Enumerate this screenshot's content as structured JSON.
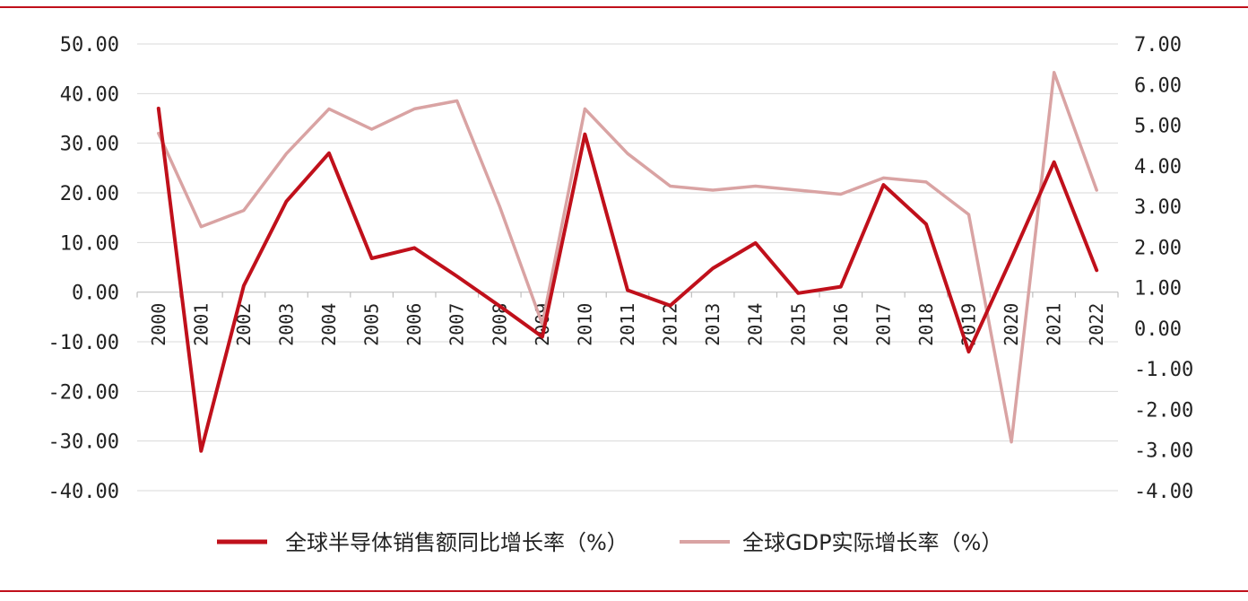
{
  "chart_data": {
    "type": "line",
    "categories": [
      "2000",
      "2001",
      "2002",
      "2003",
      "2004",
      "2005",
      "2006",
      "2007",
      "2008",
      "2009",
      "2010",
      "2011",
      "2012",
      "2013",
      "2014",
      "2015",
      "2016",
      "2017",
      "2018",
      "2019",
      "2020",
      "2021",
      "2022"
    ],
    "series": [
      {
        "name": "全球半导体销售额同比增长率（%）",
        "axis": "left",
        "color": "#c0101b",
        "values": [
          37.0,
          -32.0,
          1.3,
          18.3,
          28.0,
          6.8,
          8.9,
          3.2,
          -2.8,
          -9.0,
          31.8,
          0.4,
          -2.7,
          4.8,
          9.9,
          -0.2,
          1.1,
          21.6,
          13.7,
          -12.0,
          6.8,
          26.2,
          4.4
        ]
      },
      {
        "name": "全球GDP实际增长率（%）",
        "axis": "right",
        "color": "#d9a3a3",
        "values": [
          4.8,
          2.5,
          2.9,
          4.3,
          5.4,
          4.9,
          5.4,
          5.6,
          3.0,
          0.1,
          5.4,
          4.3,
          3.5,
          3.4,
          3.5,
          3.4,
          3.3,
          3.7,
          3.6,
          2.8,
          -2.8,
          6.3,
          3.4
        ]
      }
    ],
    "y_left": {
      "ylim": [
        -40,
        50
      ],
      "ticks": [
        "50.00",
        "40.00",
        "30.00",
        "20.00",
        "10.00",
        "0.00",
        "-10.00",
        "-20.00",
        "-30.00",
        "-40.00"
      ]
    },
    "y_right": {
      "ylim": [
        -4,
        7
      ],
      "ticks": [
        "7.00",
        "6.00",
        "5.00",
        "4.00",
        "3.00",
        "2.00",
        "1.00",
        "0.00",
        "-1.00",
        "-2.00",
        "-3.00",
        "-4.00"
      ]
    },
    "grid": true,
    "legend_position": "bottom",
    "title": "",
    "xlabel": "",
    "ylabel": ""
  },
  "frame": {
    "rule_color": "#c0101b"
  }
}
